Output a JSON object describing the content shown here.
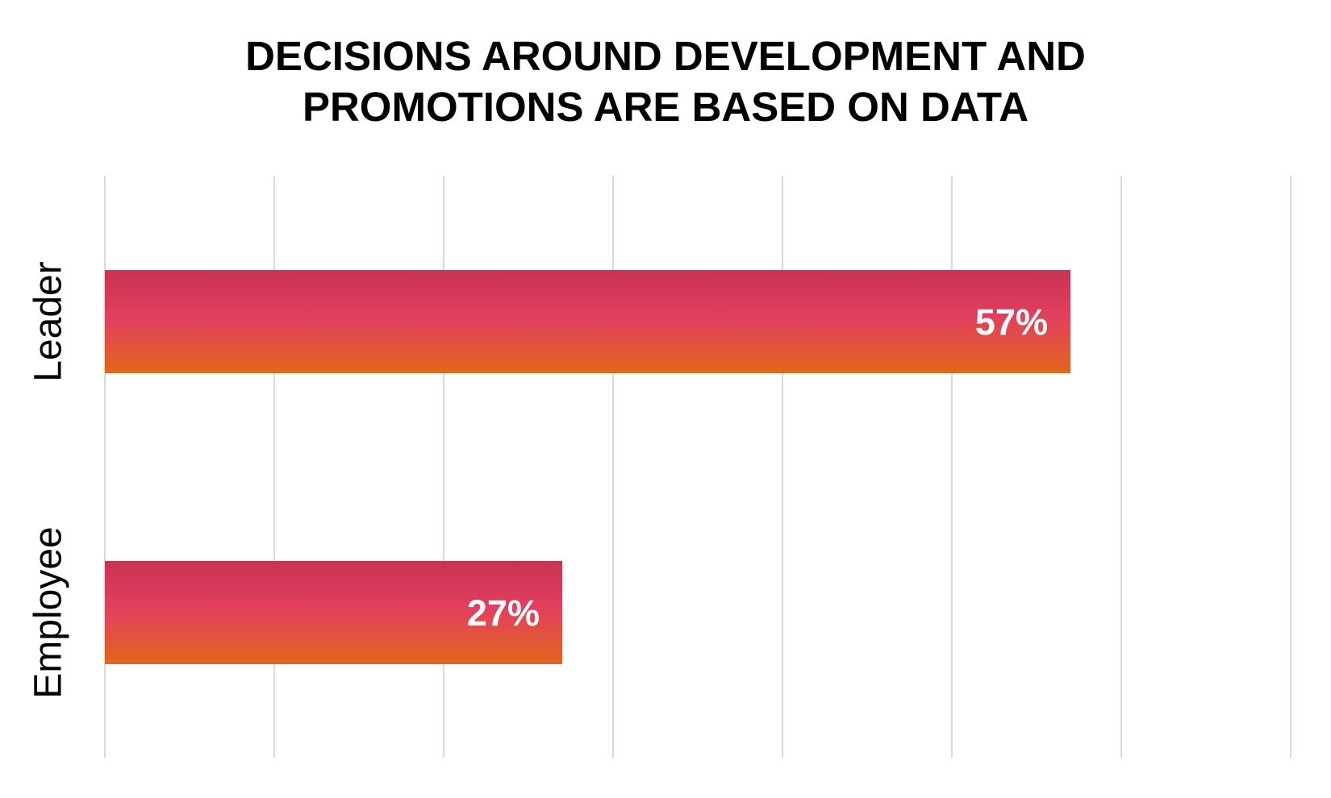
{
  "chart_data": {
    "type": "bar",
    "orientation": "horizontal",
    "title_lines": [
      "DECISIONS AROUND DEVELOPMENT AND",
      "PROMOTIONS ARE BASED ON DATA"
    ],
    "categories": [
      "Leader",
      "Employee"
    ],
    "values": [
      57,
      27
    ],
    "data_labels": [
      "57%",
      "27%"
    ],
    "xlim": [
      0,
      70
    ],
    "grid": true,
    "legend": "none",
    "colors": {
      "bar_top": "#c93352",
      "bar_mid": "#e23f5f",
      "bar_bottom": "#e2661b",
      "gridline": "#d9d9d9",
      "title": "#000000",
      "data_label": "#ffffff"
    }
  }
}
